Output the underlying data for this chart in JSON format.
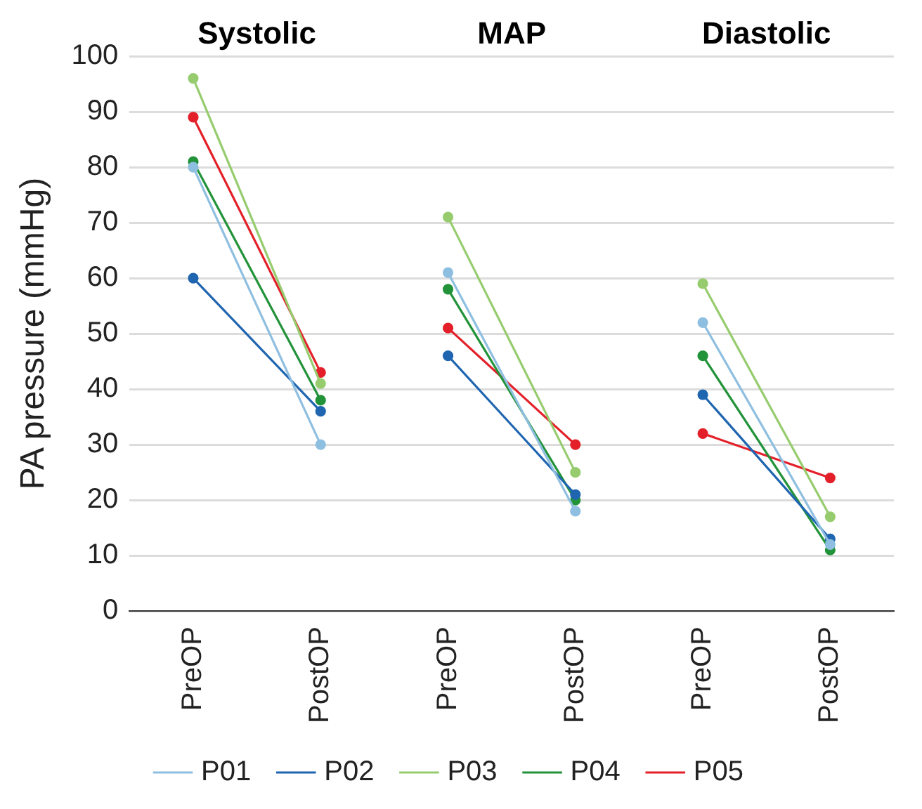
{
  "chart_data": {
    "type": "line",
    "ylabel": "PA pressure (mmHg)",
    "annotations": [
      "Systolic",
      "MAP",
      "Diastolic"
    ],
    "categories": [
      "PreOP",
      "PostOP",
      "PreOP",
      "PostOP",
      "PreOP",
      "PostOP"
    ],
    "series": [
      {
        "name": "P01",
        "color": "#8fbfe0",
        "values": [
          80,
          30,
          61,
          18,
          52,
          12
        ]
      },
      {
        "name": "P02",
        "color": "#1f65b0",
        "values": [
          60,
          36,
          46,
          21,
          39,
          13
        ]
      },
      {
        "name": "P03",
        "color": "#96cc6e",
        "values": [
          96,
          41,
          71,
          25,
          59,
          17
        ]
      },
      {
        "name": "P04",
        "color": "#23933a",
        "values": [
          81,
          38,
          58,
          20,
          46,
          11
        ]
      },
      {
        "name": "P05",
        "color": "#e3202a",
        "values": [
          89,
          43,
          51,
          30,
          32,
          24
        ]
      }
    ],
    "ylim": [
      0,
      100
    ],
    "yticks": [
      0,
      10,
      20,
      30,
      40,
      50,
      60,
      70,
      80,
      90,
      100
    ],
    "grid": "y",
    "legend": "bottom",
    "marker": "circle",
    "line_style": "solid"
  }
}
